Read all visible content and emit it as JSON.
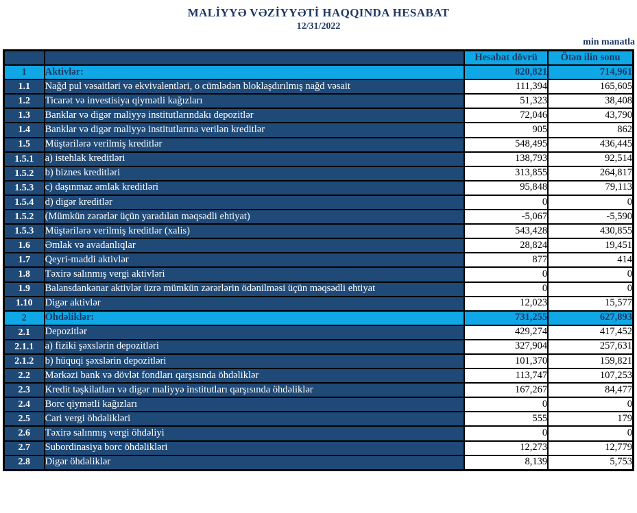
{
  "page": {
    "title": "MALİYYƏ VƏZİYYƏTİ HAQQINDA HESABAT",
    "date": "12/31/2022",
    "unit_note": "min manatla"
  },
  "table": {
    "columns": [
      "Hesabat dövrü",
      "Ötən ilin sonu"
    ],
    "rows": [
      {
        "num": "1",
        "label": "Aktivlər:",
        "current": "820,821",
        "previous": "714,961",
        "highlight": true
      },
      {
        "num": "1.1",
        "label": "Nağd pul vəsaitləri və  ekvivalentləri, o cümlədən bloklaşdırılmış nağd vəsait",
        "current": "111,394",
        "previous": "165,605",
        "highlight": false
      },
      {
        "num": "1.2",
        "label": "Ticarət və investisiya qiymətli kağızları",
        "current": "51,323",
        "previous": "38,408",
        "highlight": false
      },
      {
        "num": "1.3",
        "label": "Banklar və digər maliyyə institutlarındakı depozitlər",
        "current": "72,046",
        "previous": "43,790",
        "highlight": false
      },
      {
        "num": "1.4",
        "label": "Banklar və digər maliyyə institutlarına verilən kreditlər",
        "current": "905",
        "previous": "862",
        "highlight": false
      },
      {
        "num": "1.5",
        "label": "Müştərilərə verilmiş kreditlər",
        "current": "548,495",
        "previous": "436,445",
        "highlight": false
      },
      {
        "num": "1.5.1",
        "label": "a) istehlak kreditləri",
        "current": "138,793",
        "previous": "92,514",
        "highlight": false
      },
      {
        "num": "1.5.2",
        "label": "b) biznes kreditləri",
        "current": "313,855",
        "previous": "264,817",
        "highlight": false
      },
      {
        "num": "1.5.3",
        "label": "c) daşınmaz əmlak kreditləri",
        "current": "95,848",
        "previous": "79,113",
        "highlight": false
      },
      {
        "num": "1.5.4",
        "label": "d) digər kreditlər",
        "current": "0",
        "previous": "0",
        "highlight": false
      },
      {
        "num": "1.5.2",
        "label": "(Mümkün zərərlər üçün yaradılan məqsədli ehtiyat)",
        "current": "-5,067",
        "previous": "-5,590",
        "highlight": false
      },
      {
        "num": "1.5.3",
        "label": "Müştərilərə verilmiş kreditlər (xalis)",
        "current": "543,428",
        "previous": "430,855",
        "highlight": false
      },
      {
        "num": "1.6",
        "label": "Əmlak və avadanlıqlar",
        "current": "28,824",
        "previous": "19,451",
        "highlight": false
      },
      {
        "num": "1.7",
        "label": "Qeyri-maddi aktivlər",
        "current": "877",
        "previous": "414",
        "highlight": false
      },
      {
        "num": "1.8",
        "label": "Təxirə salınmış vergi aktivləri",
        "current": "0",
        "previous": "0",
        "highlight": false
      },
      {
        "num": "1.9",
        "label": "Balansdankənar aktivlər üzrə mümkün zərərlərin ödənilməsi üçün məqsədli ehtiyat",
        "current": "0",
        "previous": "0",
        "highlight": false
      },
      {
        "num": "1.10",
        "label": "Digər aktivlər",
        "current": "12,023",
        "previous": "15,577",
        "highlight": false
      },
      {
        "num": "2",
        "label": "Öhdəliklər:",
        "current": "731,255",
        "previous": "627,893",
        "highlight": true
      },
      {
        "num": "2.1",
        "label": "Depozitlər",
        "current": "429,274",
        "previous": "417,452",
        "highlight": false
      },
      {
        "num": "2.1.1",
        "label": "a) fiziki şəxslərin depozitləri",
        "current": "327,904",
        "previous": "257,631",
        "highlight": false
      },
      {
        "num": "2.1.2",
        "label": "b) hüquqi şəxslərin depozitləri",
        "current": "101,370",
        "previous": "159,821",
        "highlight": false
      },
      {
        "num": "2.2",
        "label": "Mərkəzi bank və dövlət fondları qarşısında öhdəliklər",
        "current": "113,747",
        "previous": "107,253",
        "highlight": false
      },
      {
        "num": "2.3",
        "label": "Kredit təşkilatları və digər maliyyə institutları qarşısında öhdəliklər",
        "current": "167,267",
        "previous": "84,477",
        "highlight": false
      },
      {
        "num": "2.4",
        "label": "Borc qiymətli kağızları",
        "current": "0",
        "previous": "0",
        "highlight": false
      },
      {
        "num": "2.5",
        "label": "Cari vergi öhdəlikləri",
        "current": "555",
        "previous": "179",
        "highlight": false
      },
      {
        "num": "2.6",
        "label": "Təxirə salınmış vergi öhdəliyi",
        "current": "0",
        "previous": "0",
        "highlight": false
      },
      {
        "num": "2.7",
        "label": "Subordinasiya borc öhdəlikləri",
        "current": "12,273",
        "previous": "12,779",
        "highlight": false
      },
      {
        "num": "2.8",
        "label": "Digər öhdəliklər",
        "current": "8,139",
        "previous": "5,753",
        "highlight": false
      }
    ]
  }
}
